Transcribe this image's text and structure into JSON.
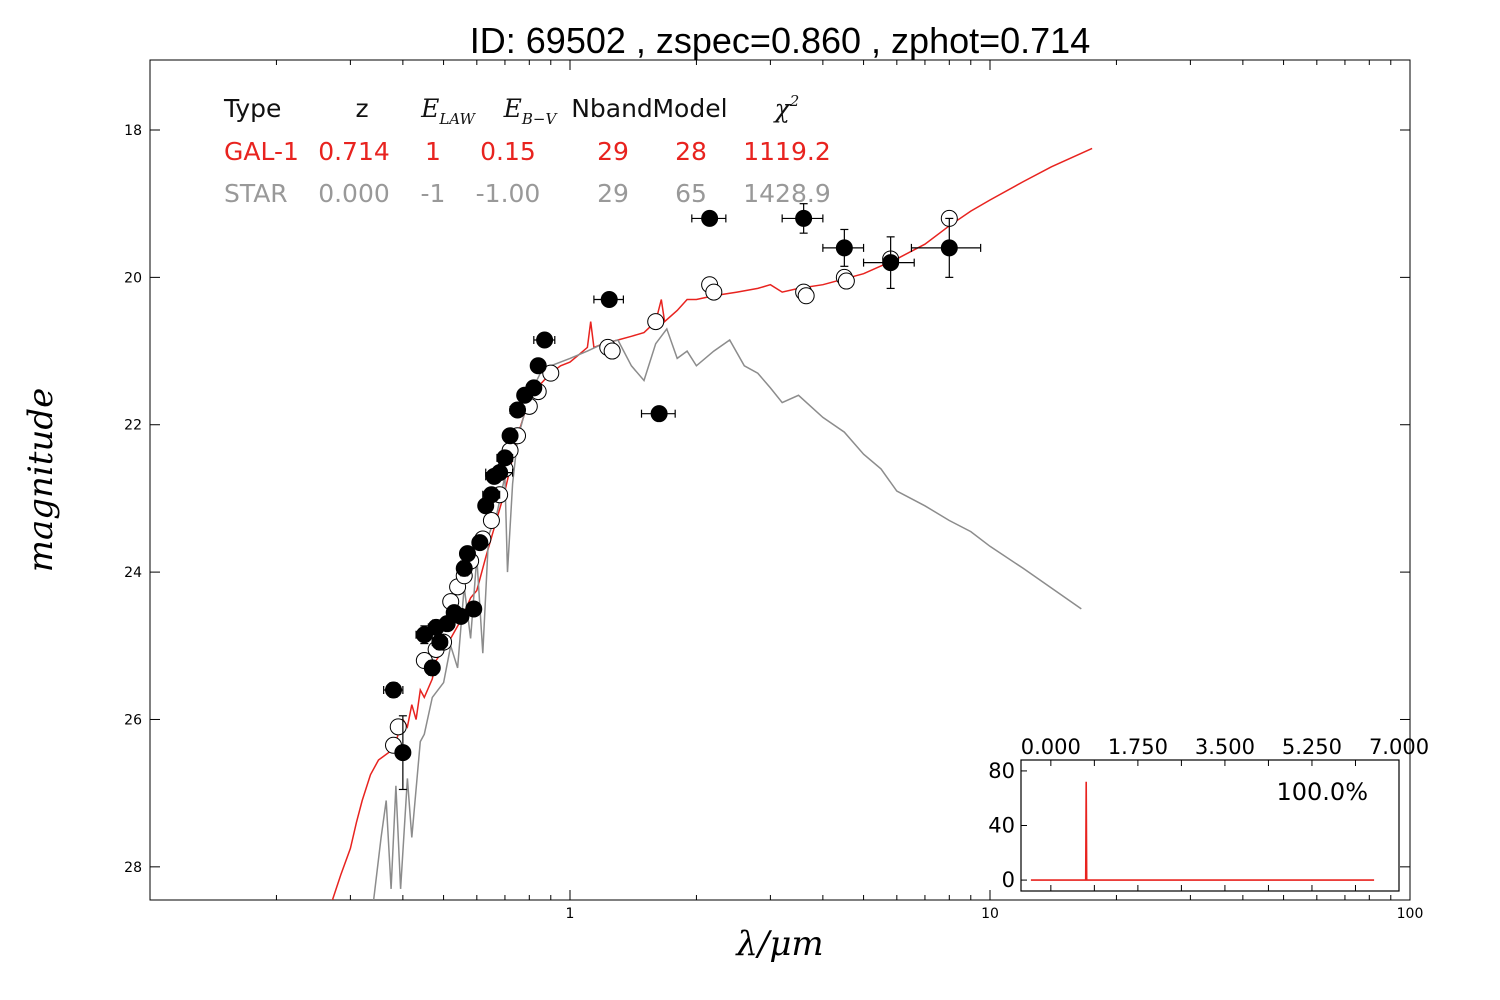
{
  "chart_data": {
    "type": "scatter",
    "title": "ID:  69502 , zspec=0.860 , zphot=0.714",
    "xlabel": "λ/μm",
    "ylabel": "magnitude",
    "xscale": "log",
    "xlim": [
      0.1,
      100
    ],
    "ylim": [
      28.45,
      17.05
    ],
    "y_inverted": true,
    "xticks": [
      {
        "value": 1,
        "label": "1"
      },
      {
        "value": 10,
        "label": "10"
      },
      {
        "value": 100,
        "label": "100"
      }
    ],
    "yticks": [
      {
        "value": 18,
        "label": "18"
      },
      {
        "value": 20,
        "label": "20"
      },
      {
        "value": 22,
        "label": "22"
      },
      {
        "value": 24,
        "label": "24"
      },
      {
        "value": 26,
        "label": "26"
      },
      {
        "value": 28,
        "label": "28"
      }
    ],
    "grid": false,
    "table": {
      "headers": [
        {
          "text": "Type"
        },
        {
          "text": "z"
        },
        {
          "text": "E",
          "sub": "LAW"
        },
        {
          "text": "E",
          "sub": "B−V"
        },
        {
          "text": "Nband"
        },
        {
          "text": "Model"
        },
        {
          "text": "χ",
          "sup": "2"
        }
      ],
      "rows": [
        {
          "color": "#e8231f",
          "cells": [
            "GAL-1",
            "0.714",
            "1",
            "0.15",
            "29",
            "28",
            "1119.2"
          ]
        },
        {
          "color": "#999999",
          "cells": [
            "STAR",
            "0.000",
            "-1",
            "-1.00",
            "29",
            "65",
            "1428.9"
          ]
        }
      ]
    },
    "series": [
      {
        "kind": "galaxy_template",
        "color": "#e8231f",
        "points": [
          [
            0.27,
            28.5
          ],
          [
            0.285,
            28.1
          ],
          [
            0.3,
            27.75
          ],
          [
            0.31,
            27.4
          ],
          [
            0.32,
            27.1
          ],
          [
            0.335,
            26.75
          ],
          [
            0.35,
            26.55
          ],
          [
            0.37,
            26.45
          ],
          [
            0.385,
            26.3
          ],
          [
            0.4,
            26.0
          ],
          [
            0.41,
            26.1
          ],
          [
            0.42,
            25.8
          ],
          [
            0.43,
            26.0
          ],
          [
            0.44,
            25.6
          ],
          [
            0.45,
            25.7
          ],
          [
            0.47,
            25.45
          ],
          [
            0.48,
            25.2
          ],
          [
            0.5,
            25.05
          ],
          [
            0.52,
            24.9
          ],
          [
            0.55,
            24.65
          ],
          [
            0.58,
            24.35
          ],
          [
            0.6,
            24.25
          ],
          [
            0.63,
            23.8
          ],
          [
            0.66,
            23.4
          ],
          [
            0.7,
            22.9
          ],
          [
            0.73,
            22.45
          ],
          [
            0.76,
            22.05
          ],
          [
            0.8,
            21.65
          ],
          [
            0.85,
            21.45
          ],
          [
            0.9,
            21.3
          ],
          [
            0.95,
            21.2
          ],
          [
            1.0,
            21.15
          ],
          [
            1.05,
            21.05
          ],
          [
            1.1,
            20.95
          ],
          [
            1.12,
            20.6
          ],
          [
            1.14,
            20.95
          ],
          [
            1.2,
            20.9
          ],
          [
            1.3,
            20.85
          ],
          [
            1.4,
            20.8
          ],
          [
            1.5,
            20.75
          ],
          [
            1.6,
            20.6
          ],
          [
            1.65,
            20.3
          ],
          [
            1.68,
            20.6
          ],
          [
            1.8,
            20.45
          ],
          [
            1.9,
            20.3
          ],
          [
            2.0,
            20.3
          ],
          [
            2.2,
            20.25
          ],
          [
            2.5,
            20.2
          ],
          [
            2.8,
            20.15
          ],
          [
            3.0,
            20.1
          ],
          [
            3.2,
            20.2
          ],
          [
            3.5,
            20.15
          ],
          [
            4.0,
            20.1
          ],
          [
            5.0,
            19.95
          ],
          [
            6.0,
            19.75
          ],
          [
            7.0,
            19.55
          ],
          [
            8.0,
            19.3
          ],
          [
            9.0,
            19.1
          ],
          [
            10.0,
            18.95
          ],
          [
            12.0,
            18.7
          ],
          [
            14.0,
            18.5
          ],
          [
            17.5,
            18.25
          ]
        ]
      },
      {
        "kind": "star_template",
        "color": "#8c8c8c",
        "points": [
          [
            0.34,
            28.5
          ],
          [
            0.355,
            27.6
          ],
          [
            0.365,
            27.1
          ],
          [
            0.375,
            28.3
          ],
          [
            0.385,
            26.9
          ],
          [
            0.395,
            28.3
          ],
          [
            0.41,
            26.8
          ],
          [
            0.42,
            27.6
          ],
          [
            0.44,
            26.3
          ],
          [
            0.45,
            26.2
          ],
          [
            0.47,
            25.7
          ],
          [
            0.5,
            25.5
          ],
          [
            0.52,
            25.0
          ],
          [
            0.54,
            25.3
          ],
          [
            0.56,
            24.2
          ],
          [
            0.58,
            24.9
          ],
          [
            0.6,
            23.8
          ],
          [
            0.62,
            25.1
          ],
          [
            0.64,
            23.5
          ],
          [
            0.67,
            23.2
          ],
          [
            0.7,
            22.7
          ],
          [
            0.71,
            24.0
          ],
          [
            0.73,
            22.8
          ],
          [
            0.75,
            22.2
          ],
          [
            0.8,
            21.6
          ],
          [
            0.85,
            21.3
          ],
          [
            0.9,
            21.2
          ],
          [
            1.0,
            21.1
          ],
          [
            1.1,
            21.0
          ],
          [
            1.2,
            20.9
          ],
          [
            1.3,
            20.85
          ],
          [
            1.4,
            21.2
          ],
          [
            1.5,
            21.4
          ],
          [
            1.6,
            20.9
          ],
          [
            1.7,
            20.7
          ],
          [
            1.8,
            21.1
          ],
          [
            1.9,
            21.0
          ],
          [
            2.0,
            21.2
          ],
          [
            2.2,
            21.0
          ],
          [
            2.4,
            20.85
          ],
          [
            2.6,
            21.2
          ],
          [
            2.8,
            21.3
          ],
          [
            3.0,
            21.5
          ],
          [
            3.2,
            21.7
          ],
          [
            3.5,
            21.6
          ],
          [
            4.0,
            21.9
          ],
          [
            4.5,
            22.1
          ],
          [
            5.0,
            22.4
          ],
          [
            5.5,
            22.6
          ],
          [
            6.0,
            22.9
          ],
          [
            7.0,
            23.1
          ],
          [
            8.0,
            23.3
          ],
          [
            9.0,
            23.45
          ],
          [
            10.0,
            23.65
          ],
          [
            12.0,
            23.95
          ],
          [
            16.5,
            24.5
          ]
        ]
      },
      {
        "kind": "observed",
        "marker": "filled",
        "points": [
          {
            "x": 0.38,
            "y": 25.6,
            "xerr": 0.02,
            "yerr": 0.1
          },
          {
            "x": 0.4,
            "y": 26.45,
            "xerr": 0.01,
            "yerr": 0.5
          },
          {
            "x": 0.45,
            "y": 24.85,
            "xerr": 0.02,
            "yerr": 0.12
          },
          {
            "x": 0.47,
            "y": 25.3,
            "xerr": 0.01,
            "yerr": 0.1
          },
          {
            "x": 0.48,
            "y": 24.75,
            "xerr": 0.02,
            "yerr": 0.1
          },
          {
            "x": 0.49,
            "y": 24.95,
            "xerr": 0.02,
            "yerr": 0.1
          },
          {
            "x": 0.51,
            "y": 24.7,
            "xerr": 0.02,
            "yerr": 0.08
          },
          {
            "x": 0.53,
            "y": 24.55,
            "xerr": 0.02,
            "yerr": 0.08
          },
          {
            "x": 0.55,
            "y": 24.6,
            "xerr": 0.02,
            "yerr": 0.08
          },
          {
            "x": 0.56,
            "y": 23.95,
            "xerr": 0.02,
            "yerr": 0.1
          },
          {
            "x": 0.57,
            "y": 23.75,
            "xerr": 0.02,
            "yerr": 0.08
          },
          {
            "x": 0.59,
            "y": 24.5,
            "xerr": 0.02,
            "yerr": 0.08
          },
          {
            "x": 0.61,
            "y": 23.6,
            "xerr": 0.02,
            "yerr": 0.07
          },
          {
            "x": 0.63,
            "y": 23.1,
            "xerr": 0.02,
            "yerr": 0.07
          },
          {
            "x": 0.65,
            "y": 22.95,
            "xerr": 0.03,
            "yerr": 0.07
          },
          {
            "x": 0.66,
            "y": 22.7,
            "xerr": 0.03,
            "yerr": 0.07
          },
          {
            "x": 0.68,
            "y": 22.65,
            "xerr": 0.05,
            "yerr": 0.07
          },
          {
            "x": 0.7,
            "y": 22.45,
            "xerr": 0.03,
            "yerr": 0.06
          },
          {
            "x": 0.72,
            "y": 22.15,
            "xerr": 0.02,
            "yerr": 0.06
          },
          {
            "x": 0.75,
            "y": 21.8,
            "xerr": 0.03,
            "yerr": 0.06
          },
          {
            "x": 0.78,
            "y": 21.6,
            "xerr": 0.02,
            "yerr": 0.05
          },
          {
            "x": 0.82,
            "y": 21.5,
            "xerr": 0.03,
            "yerr": 0.05
          },
          {
            "x": 0.84,
            "y": 21.2,
            "xerr": 0.03,
            "yerr": 0.05
          },
          {
            "x": 0.87,
            "y": 20.85,
            "xerr": 0.05,
            "yerr": 0.05
          },
          {
            "x": 1.24,
            "y": 20.3,
            "xerr": 0.1,
            "yerr": 0.04
          },
          {
            "x": 1.63,
            "y": 21.85,
            "xerr": 0.15,
            "yerr": 0.06
          },
          {
            "x": 2.15,
            "y": 19.2,
            "xerr": 0.2,
            "yerr": 0.04
          },
          {
            "x": 3.6,
            "y": 19.2,
            "xerr": 0.4,
            "yerr": 0.2
          },
          {
            "x": 4.5,
            "y": 19.6,
            "xerr": 0.5,
            "yerr": 0.25
          },
          {
            "x": 5.8,
            "y": 19.8,
            "xerr": 0.8,
            "yerr": 0.35
          },
          {
            "x": 8.0,
            "y": 19.6,
            "xerr": 1.5,
            "yerr": 0.4
          }
        ]
      },
      {
        "kind": "model",
        "marker": "open",
        "points": [
          {
            "x": 0.38,
            "y": 26.35
          },
          {
            "x": 0.39,
            "y": 26.1
          },
          {
            "x": 0.45,
            "y": 25.2
          },
          {
            "x": 0.48,
            "y": 25.05
          },
          {
            "x": 0.5,
            "y": 24.95
          },
          {
            "x": 0.52,
            "y": 24.4
          },
          {
            "x": 0.54,
            "y": 24.2
          },
          {
            "x": 0.56,
            "y": 24.05
          },
          {
            "x": 0.58,
            "y": 23.85
          },
          {
            "x": 0.62,
            "y": 23.55
          },
          {
            "x": 0.65,
            "y": 23.3
          },
          {
            "x": 0.68,
            "y": 22.95
          },
          {
            "x": 0.7,
            "y": 22.6
          },
          {
            "x": 0.72,
            "y": 22.35
          },
          {
            "x": 0.75,
            "y": 22.15
          },
          {
            "x": 0.8,
            "y": 21.75
          },
          {
            "x": 0.84,
            "y": 21.55
          },
          {
            "x": 0.9,
            "y": 21.3
          },
          {
            "x": 1.23,
            "y": 20.95
          },
          {
            "x": 1.26,
            "y": 21.0
          },
          {
            "x": 1.6,
            "y": 20.6
          },
          {
            "x": 2.15,
            "y": 20.1
          },
          {
            "x": 2.2,
            "y": 20.2
          },
          {
            "x": 3.6,
            "y": 20.2
          },
          {
            "x": 3.65,
            "y": 20.25
          },
          {
            "x": 4.5,
            "y": 20.0
          },
          {
            "x": 4.55,
            "y": 20.05
          },
          {
            "x": 5.8,
            "y": 19.75
          },
          {
            "x": 8.0,
            "y": 19.2
          }
        ]
      }
    ],
    "inset": {
      "type": "line",
      "color": "#e8231f",
      "xlim": [
        -0.6,
        7.0
      ],
      "ylim": [
        -8,
        88
      ],
      "xticks": [
        {
          "value": 0.0,
          "label": "0.000"
        },
        {
          "value": 1.75,
          "label": "1.750"
        },
        {
          "value": 3.5,
          "label": "3.500"
        },
        {
          "value": 5.25,
          "label": "5.250"
        },
        {
          "value": 7.0,
          "label": "7.000"
        }
      ],
      "yticks": [
        {
          "value": 0,
          "label": "0"
        },
        {
          "value": 40,
          "label": "40"
        },
        {
          "value": 80,
          "label": "80"
        }
      ],
      "annotation": "100.0%",
      "points": [
        [
          -0.4,
          0
        ],
        [
          0.7,
          0
        ],
        [
          0.71,
          72
        ],
        [
          0.72,
          0
        ],
        [
          6.5,
          0
        ]
      ]
    }
  }
}
